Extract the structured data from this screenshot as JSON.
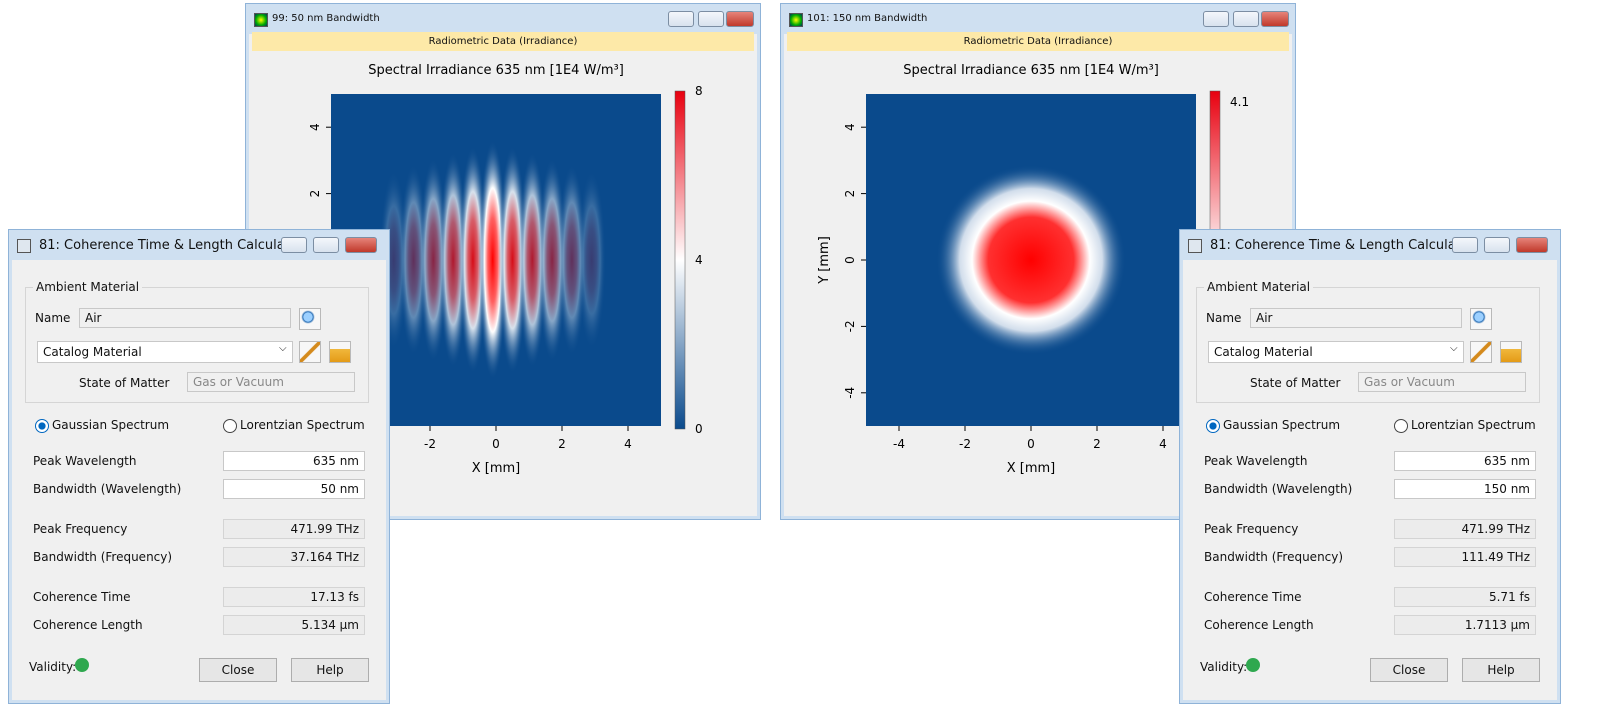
{
  "plot_windows": [
    {
      "title": "99: 50 nm Bandwidth",
      "banner": "Radiometric Data (Irradiance)",
      "plot_title": "Spectral Irradiance 635 nm  [1E4 W/m³]",
      "x_label": "X [mm]",
      "xticks": [
        -2,
        0,
        2,
        4
      ],
      "yticks": [
        4,
        2
      ],
      "colorbar_ticks": [
        0,
        4,
        8
      ]
    },
    {
      "title": "101: 150 nm Bandwidth",
      "banner": "Radiometric Data (Irradiance)",
      "plot_title": "Spectral Irradiance 635 nm  [1E4 W/m³]",
      "x_label": "X [mm]",
      "y_label": "Y [mm]",
      "xticks": [
        -4,
        -2,
        0,
        2,
        4
      ],
      "yticks": [
        4,
        2,
        0,
        -2,
        -4
      ],
      "colorbar_ticks": [
        4.1
      ]
    }
  ],
  "dialogs": [
    {
      "title": "81: Coherence Time & Length Calculat...",
      "group": "Ambient Material",
      "name_label": "Name",
      "name_value": "Air",
      "material": "Catalog Material",
      "state_label": "State of Matter",
      "state_value": "Gas or Vacuum",
      "radios": [
        "Gaussian Spectrum",
        "Lorentzian Spectrum"
      ],
      "fields": [
        {
          "label": "Peak Wavelength",
          "value": "635 nm"
        },
        {
          "label": "Bandwidth (Wavelength)",
          "value": "50 nm"
        },
        {
          "label": "Peak Frequency",
          "value": "471.99 THz"
        },
        {
          "label": "Bandwidth (Frequency)",
          "value": "37.164 THz"
        },
        {
          "label": "Coherence Time",
          "value": "17.13 fs"
        },
        {
          "label": "Coherence Length",
          "value": "5.134 µm"
        }
      ],
      "validity": "Validity:",
      "buttons": [
        "Close",
        "Help"
      ]
    },
    {
      "title": "81: Coherence Time & Length Calculat...",
      "group": "Ambient Material",
      "name_label": "Name",
      "name_value": "Air",
      "material": "Catalog Material",
      "state_label": "State of Matter",
      "state_value": "Gas or Vacuum",
      "radios": [
        "Gaussian Spectrum",
        "Lorentzian Spectrum"
      ],
      "fields": [
        {
          "label": "Peak Wavelength",
          "value": "635 nm"
        },
        {
          "label": "Bandwidth (Wavelength)",
          "value": "150 nm"
        },
        {
          "label": "Peak Frequency",
          "value": "471.99 THz"
        },
        {
          "label": "Bandwidth (Frequency)",
          "value": "111.49 THz"
        },
        {
          "label": "Coherence Time",
          "value": "5.71 fs"
        },
        {
          "label": "Coherence Length",
          "value": "1.7113 µm"
        }
      ],
      "validity": "Validity:",
      "buttons": [
        "Close",
        "Help"
      ]
    }
  ]
}
